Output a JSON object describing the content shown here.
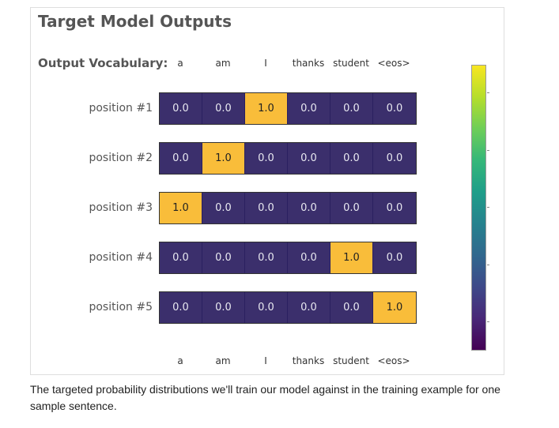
{
  "title": "Target Model Outputs",
  "vocab_label": "Output Vocabulary:",
  "vocabulary": [
    "a",
    "am",
    "I",
    "thanks",
    "student",
    "<eos>"
  ],
  "rows": [
    {
      "label": "position #1",
      "values": [
        "0.0",
        "0.0",
        "1.0",
        "0.0",
        "0.0",
        "0.0"
      ]
    },
    {
      "label": "position #2",
      "values": [
        "0.0",
        "1.0",
        "0.0",
        "0.0",
        "0.0",
        "0.0"
      ]
    },
    {
      "label": "position #3",
      "values": [
        "1.0",
        "0.0",
        "0.0",
        "0.0",
        "0.0",
        "0.0"
      ]
    },
    {
      "label": "position #4",
      "values": [
        "0.0",
        "0.0",
        "0.0",
        "0.0",
        "1.0",
        "0.0"
      ]
    },
    {
      "label": "position #5",
      "values": [
        "0.0",
        "0.0",
        "0.0",
        "0.0",
        "0.0",
        "1.0"
      ]
    }
  ],
  "colorbar": {
    "colors": [
      "#f8e621",
      "#b5de2b",
      "#6ece58",
      "#35b779",
      "#1f9e89",
      "#26828e",
      "#31688e",
      "#3e4989",
      "#482878",
      "#440154"
    ]
  },
  "colors": {
    "cell_on": "#f9bd3a",
    "cell_off": "#3b2f6c"
  },
  "caption": "The targeted probability distributions we'll train our model against in the training example for one sample sentence."
}
